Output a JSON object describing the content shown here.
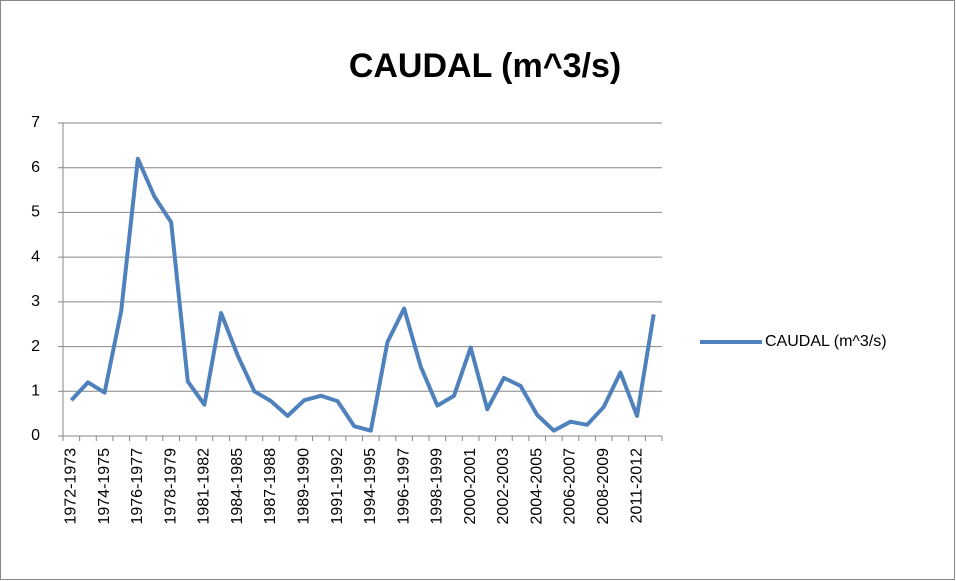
{
  "chart_data": {
    "type": "line",
    "title": "CAUDAL (m^3/s)",
    "categories": [
      "1972-1973",
      null,
      "1974-1975",
      null,
      "1976-1977",
      null,
      "1978-1979",
      null,
      "1981-1982",
      null,
      "1984-1985",
      null,
      "1987-1988",
      null,
      "1989-1990",
      null,
      "1991-1992",
      null,
      "1994-1995",
      null,
      "1996-1997",
      null,
      "1998-1999",
      null,
      "2000-2001",
      null,
      "2002-2003",
      null,
      "2004-2005",
      null,
      "2006-2007",
      null,
      "2008-2009",
      null,
      "2011-2012",
      null
    ],
    "series": [
      {
        "name": "CAUDAL (m^3/s)",
        "color": "#4f81bd",
        "values": [
          0.8,
          1.2,
          0.97,
          2.8,
          6.2,
          5.35,
          4.78,
          1.22,
          0.7,
          2.75,
          1.8,
          1.0,
          0.78,
          0.45,
          0.8,
          0.9,
          0.78,
          0.22,
          0.12,
          2.1,
          2.85,
          1.55,
          0.68,
          0.9,
          1.98,
          0.6,
          1.3,
          1.12,
          0.47,
          0.12,
          0.32,
          0.25,
          0.65,
          1.42,
          0.45,
          2.72
        ]
      }
    ],
    "ylim": [
      0,
      7
    ],
    "yticks": [
      0,
      1,
      2,
      3,
      4,
      5,
      6,
      7
    ],
    "grid": true,
    "legend": "right"
  }
}
